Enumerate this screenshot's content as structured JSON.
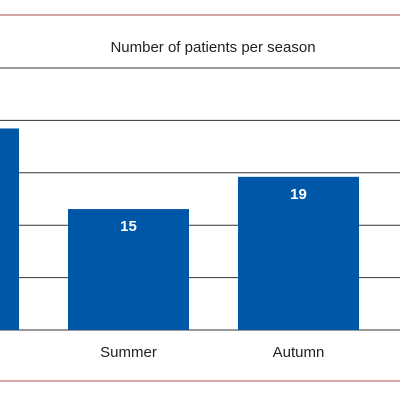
{
  "chart_data": {
    "type": "bar",
    "title": "Number of patients per season",
    "categories": [
      null,
      "Summer",
      "Autumn"
    ],
    "values": [
      25,
      15,
      19
    ],
    "color": "#0057a8",
    "ylim": [
      0,
      32.5
    ],
    "yticks": [
      0,
      6.5,
      13,
      19.5,
      26,
      32.5
    ],
    "grid": true
  }
}
